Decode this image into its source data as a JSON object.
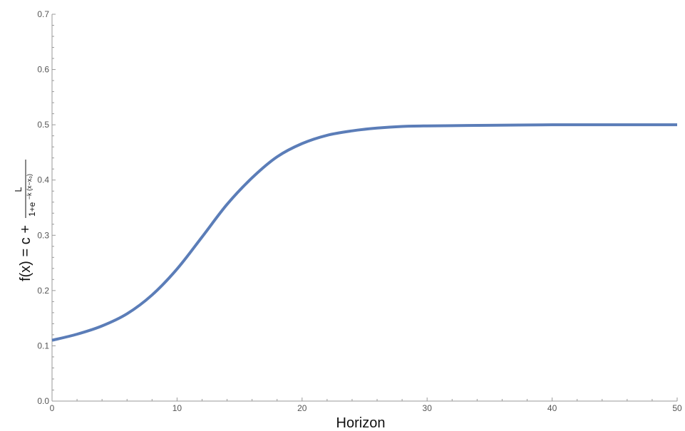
{
  "chart_data": {
    "type": "line",
    "title": "",
    "xlabel": "Horizon",
    "ylabel": {
      "lead": "f(x) = c +",
      "numerator": "L",
      "denominator_base": "1+e",
      "denominator_exponent": "−k (x−x₀)"
    },
    "xlim": [
      0,
      50
    ],
    "ylim": [
      0,
      0.7
    ],
    "x_ticks": [
      0,
      10,
      20,
      30,
      40,
      50
    ],
    "x_tick_labels": [
      "0",
      "10",
      "20",
      "30",
      "40",
      "50"
    ],
    "y_ticks": [
      0.0,
      0.1,
      0.2,
      0.3,
      0.4,
      0.5,
      0.6,
      0.7
    ],
    "y_tick_labels": [
      "0.0",
      "0.1",
      "0.2",
      "0.3",
      "0.4",
      "0.5",
      "0.6",
      "0.7"
    ],
    "grid": false,
    "legend": "none",
    "series": [
      {
        "color": "#5b7db8",
        "x": [
          0,
          2,
          4,
          6,
          8,
          10,
          12,
          14,
          16,
          18,
          20,
          22,
          24,
          26,
          28,
          30,
          35,
          40,
          45,
          50
        ],
        "y": [
          0.11,
          0.121,
          0.136,
          0.158,
          0.192,
          0.239,
          0.297,
          0.356,
          0.404,
          0.442,
          0.466,
          0.481,
          0.489,
          0.494,
          0.497,
          0.498,
          0.499,
          0.5,
          0.5,
          0.5
        ]
      }
    ]
  }
}
